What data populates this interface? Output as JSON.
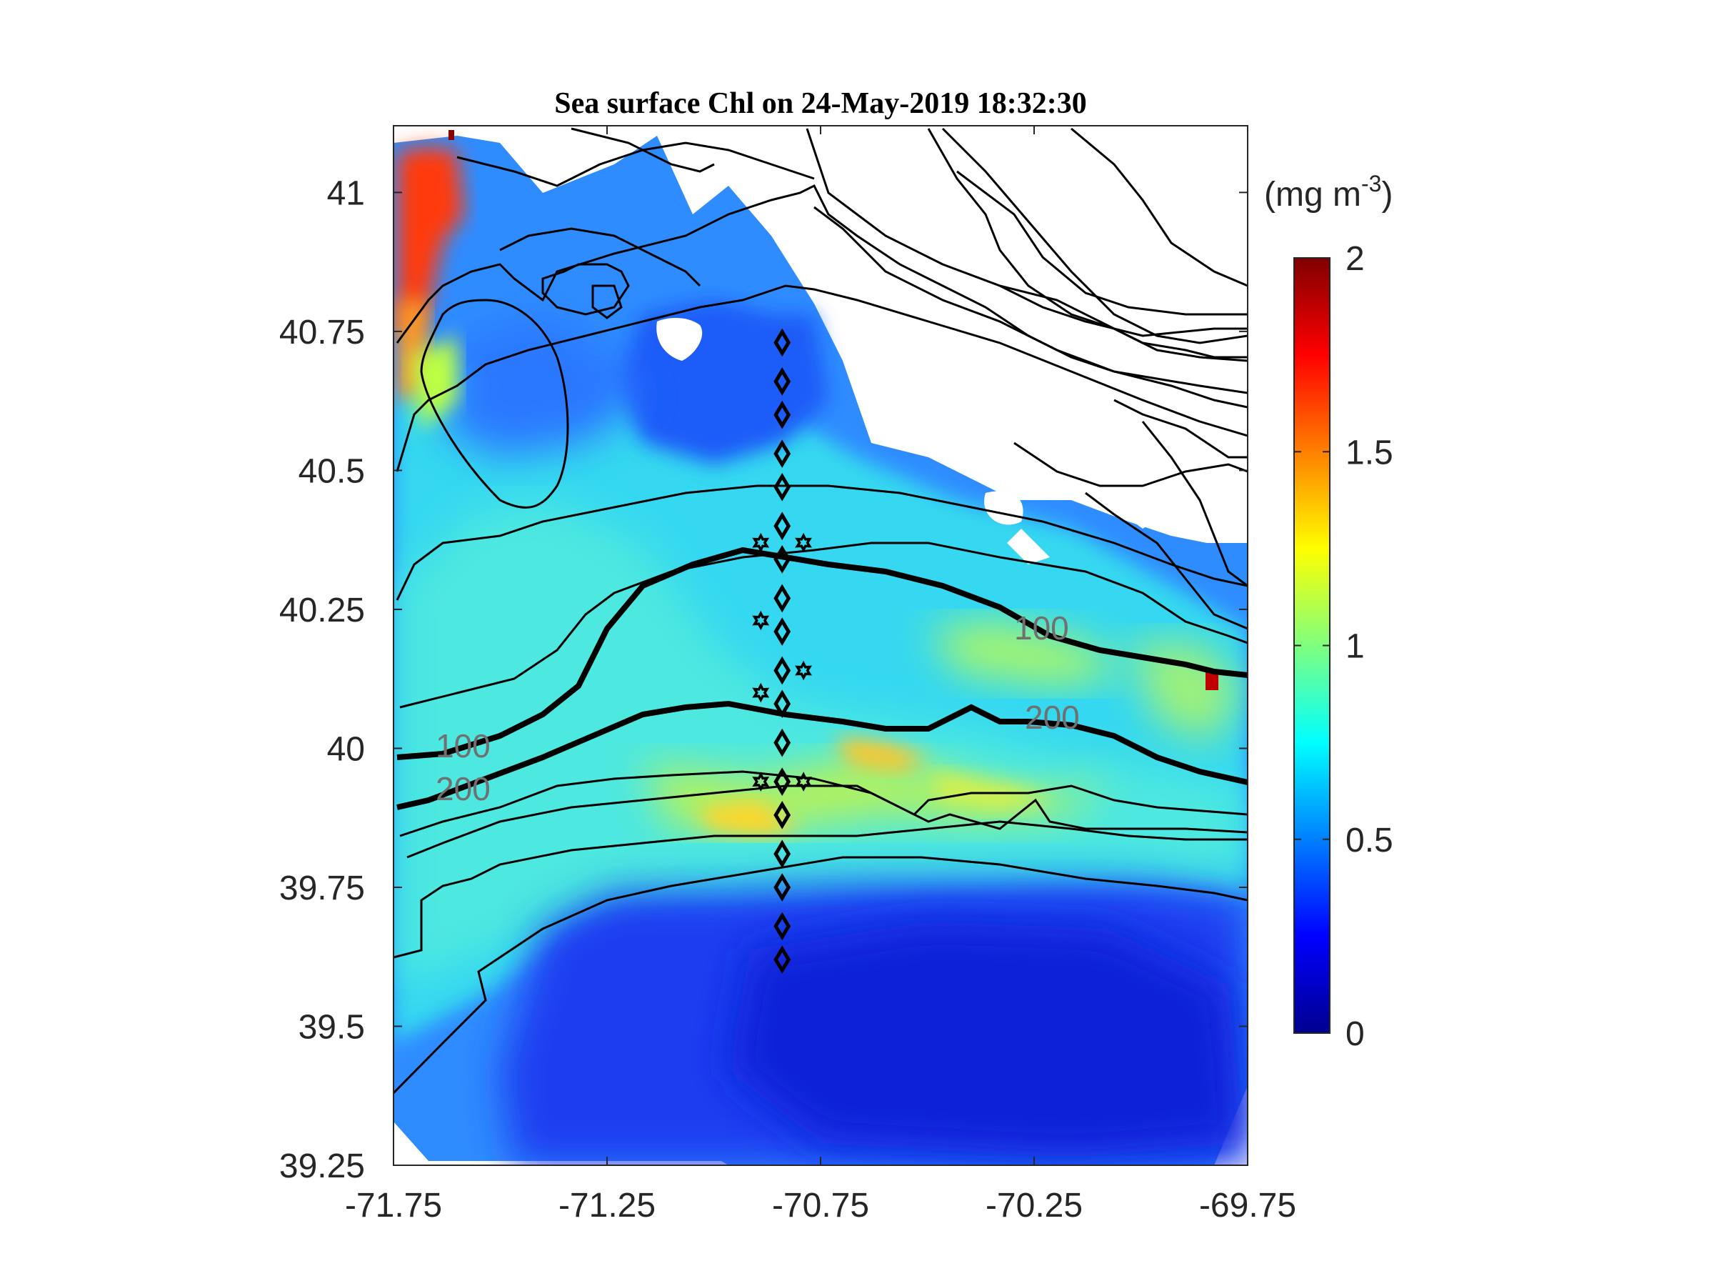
{
  "title": "Sea surface Chl on 24-May-2019 18:32:30",
  "colorbar": {
    "unit_prefix": "(mg m",
    "unit_sup": "-3",
    "unit_suffix": ")",
    "ticks": [
      "0",
      "0.5",
      "1",
      "1.5",
      "2"
    ],
    "range": [
      0,
      2
    ],
    "colormap": "jet"
  },
  "axes": {
    "x_ticks": [
      "-71.75",
      "-71.25",
      "-70.75",
      "-70.25",
      "-69.75"
    ],
    "y_ticks": [
      "41",
      "40.75",
      "40.5",
      "40.25",
      "40",
      "39.75",
      "39.5",
      "39.25"
    ],
    "x_range": [
      -71.75,
      -69.75
    ],
    "y_range": [
      39.25,
      41.12
    ]
  },
  "contour_labels": [
    "100",
    "200",
    "100",
    "200"
  ],
  "chart_data": {
    "type": "heatmap",
    "title": "Sea surface Chl on 24-May-2019 18:32:30",
    "variable": "Sea surface Chl",
    "units": "mg m^-3",
    "xlim": [
      -71.75,
      -69.75
    ],
    "ylim": [
      39.25,
      41.12
    ],
    "clim": [
      0,
      2
    ],
    "colormap": "jet",
    "isobath_labels": [
      "100",
      "200"
    ],
    "stations_diamond": {
      "lon": -70.84,
      "lat": [
        40.73,
        40.66,
        40.6,
        40.53,
        40.47,
        40.4,
        40.34,
        40.27,
        40.21,
        40.14,
        40.08,
        40.01,
        39.94,
        39.88,
        39.81,
        39.75,
        39.68,
        39.62
      ]
    },
    "stations_star": [
      {
        "lon": -70.89,
        "lat": 40.37
      },
      {
        "lon": -70.79,
        "lat": 40.37
      },
      {
        "lon": -70.89,
        "lat": 40.23
      },
      {
        "lon": -70.79,
        "lat": 40.14
      },
      {
        "lon": -70.89,
        "lat": 40.1
      },
      {
        "lon": -70.89,
        "lat": 39.94
      },
      {
        "lon": -70.79,
        "lat": 39.94
      }
    ]
  }
}
